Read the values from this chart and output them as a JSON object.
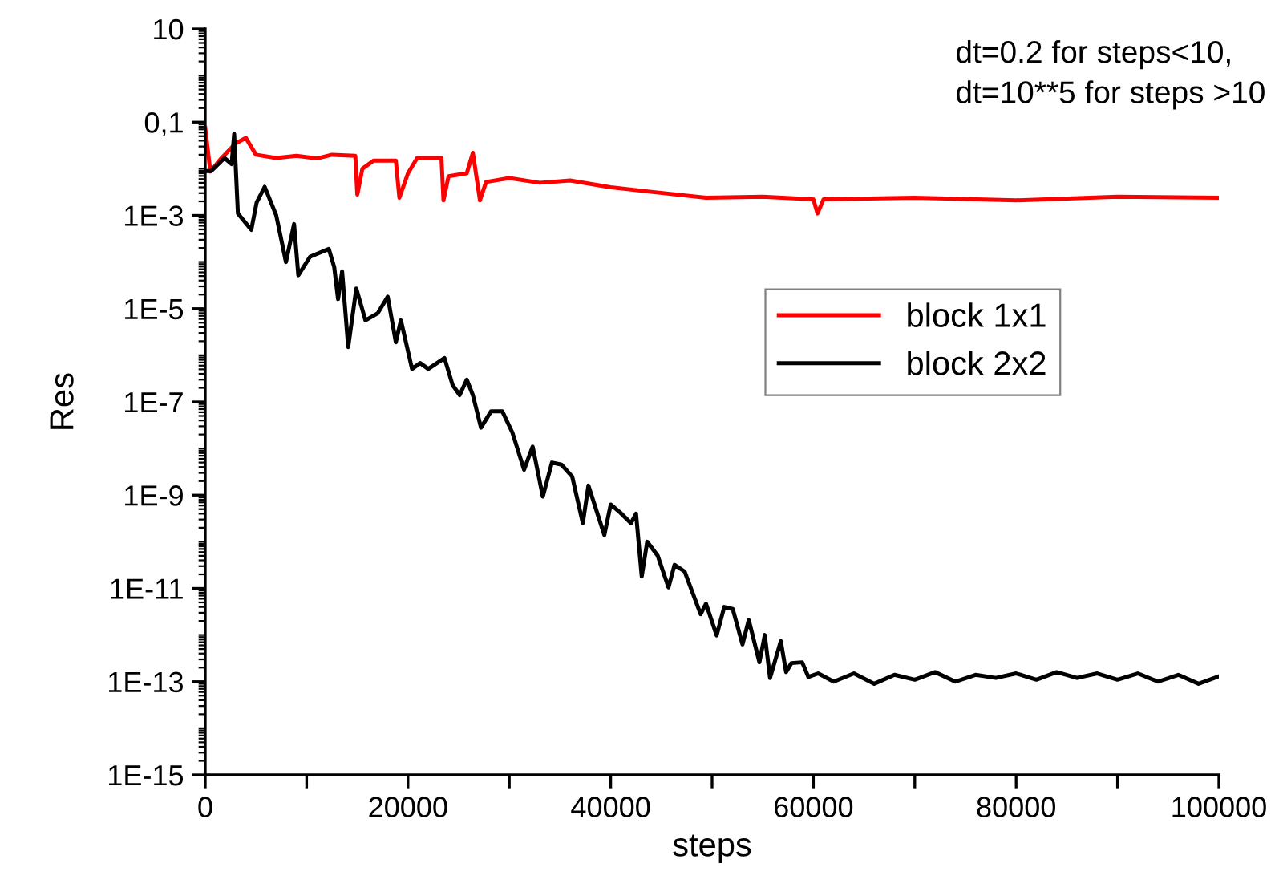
{
  "chart_data": {
    "type": "line",
    "xlabel": "steps",
    "ylabel": "Res",
    "log": "y",
    "grid": false,
    "legend": "center right",
    "line_style": "solid",
    "marker": "none",
    "annotations": [
      "dt=0.2 for steps<10,\ndt=10**5 for steps >10"
    ],
    "xlim": [
      0,
      100000
    ],
    "ylim": [
      1e-15,
      10
    ],
    "xticks": [
      0,
      {
        "value": 10000,
        "label": null
      },
      20000,
      {
        "value": 30000,
        "label": null
      },
      40000,
      {
        "value": 50000,
        "label": null
      },
      60000,
      {
        "value": 70000,
        "label": null
      },
      80000,
      {
        "value": 90000,
        "label": null
      },
      100000
    ],
    "yticks": [
      {
        "value": 1e-15,
        "label": "1E-15"
      },
      {
        "value": 1e-13,
        "label": "1E-13"
      },
      {
        "value": 1e-11,
        "label": "1E-11"
      },
      {
        "value": 1e-09,
        "label": "1E-9"
      },
      {
        "value": 1e-07,
        "label": "1E-7"
      },
      {
        "value": 1e-05,
        "label": "1E-5"
      },
      {
        "value": 0.001,
        "label": "1E-3"
      },
      {
        "value": 0.1,
        "label": "0,1"
      },
      10
    ],
    "series": [
      {
        "name": "block 1x1",
        "color": "#ff0000",
        "x": [
          0,
          500,
          1500,
          3000,
          4000,
          5000,
          7000,
          9000,
          11000,
          12500,
          14800,
          15000,
          15500,
          16600,
          18800,
          19150,
          20000,
          20900,
          23300,
          23500,
          24000,
          25800,
          26400,
          27100,
          27700,
          30000,
          33000,
          36000,
          40000,
          44000,
          49400,
          55000,
          60000,
          60400,
          61000,
          70000,
          80000,
          90000,
          100000
        ],
        "values": [
          0.074,
          0.0087,
          0.016,
          0.035,
          0.046,
          0.02,
          0.017,
          0.019,
          0.0166,
          0.02,
          0.019,
          0.0028,
          0.01,
          0.015,
          0.015,
          0.0024,
          0.008,
          0.017,
          0.017,
          0.0021,
          0.0069,
          0.008,
          0.022,
          0.0021,
          0.0052,
          0.0063,
          0.005,
          0.0056,
          0.004,
          0.0032,
          0.0024,
          0.0025,
          0.0022,
          0.0011,
          0.0022,
          0.0024,
          0.0021,
          0.0025,
          0.0024
        ]
      },
      {
        "name": "block 2x2",
        "color": "#000000",
        "x": [
          0,
          580,
          1900,
          2600,
          2850,
          3220,
          4540,
          5070,
          5860,
          7000,
          7960,
          8760,
          9180,
          10340,
          12190,
          12720,
          13100,
          13500,
          14100,
          14900,
          15800,
          17000,
          18000,
          18800,
          19300,
          20400,
          21200,
          22000,
          23600,
          24400,
          25100,
          25800,
          26400,
          27200,
          28200,
          29300,
          30300,
          31450,
          32300,
          33300,
          34200,
          35140,
          36200,
          37250,
          37800,
          39370,
          40000,
          40950,
          42000,
          42500,
          43060,
          43600,
          44640,
          45700,
          46300,
          47290,
          48870,
          49400,
          50450,
          51200,
          52040,
          53000,
          53620,
          54670,
          55200,
          55720,
          56780,
          57300,
          57830,
          58890,
          59500,
          60470,
          62000,
          64000,
          66000,
          68000,
          70000,
          72000,
          74000,
          76000,
          78000,
          80000,
          82000,
          84000,
          86000,
          88000,
          90000,
          92000,
          94000,
          96000,
          98000,
          100000
        ],
        "values": [
          0.0089,
          0.0089,
          0.017,
          0.0126,
          0.056,
          0.0011,
          0.00049,
          0.0019,
          0.0041,
          0.001,
          0.0001,
          0.00065,
          5.2e-05,
          0.00013,
          0.00019,
          7.8e-05,
          1.6e-05,
          6.3e-05,
          1.5e-06,
          2.7e-05,
          5.6e-06,
          7.9e-06,
          1.8e-05,
          1.9e-06,
          5.6e-06,
          5.1e-07,
          6.8e-07,
          5.1e-07,
          8.7e-07,
          2.3e-07,
          1.4e-07,
          3e-07,
          1.4e-07,
          2.8e-08,
          6.3e-08,
          6.3e-08,
          2.2e-08,
          3.5e-09,
          1.1e-08,
          9.3e-10,
          5e-09,
          4.5e-09,
          2.5e-09,
          2.5e-10,
          1.6e-09,
          1.4e-10,
          6.3e-10,
          4.2e-10,
          2.5e-10,
          4e-10,
          1.8e-11,
          1e-10,
          5e-11,
          1.05e-11,
          3.2e-11,
          2.3e-11,
          2.8e-12,
          4.7e-12,
          9.8e-13,
          4e-12,
          3.6e-12,
          6.3e-13,
          2.1e-12,
          2.6e-13,
          1e-12,
          1.2e-13,
          7.4e-13,
          1.6e-13,
          2.5e-13,
          2.6e-13,
          1.26e-13,
          1.5e-13,
          1e-13,
          1.5e-13,
          9e-14,
          1.4e-13,
          1.1e-13,
          1.6e-13,
          1e-13,
          1.4e-13,
          1.2e-13,
          1.5e-13,
          1.1e-13,
          1.6e-13,
          1.2e-13,
          1.5e-13,
          1.1e-13,
          1.5e-13,
          1e-13,
          1.4e-13,
          9e-14,
          1.3e-13
        ]
      }
    ]
  }
}
